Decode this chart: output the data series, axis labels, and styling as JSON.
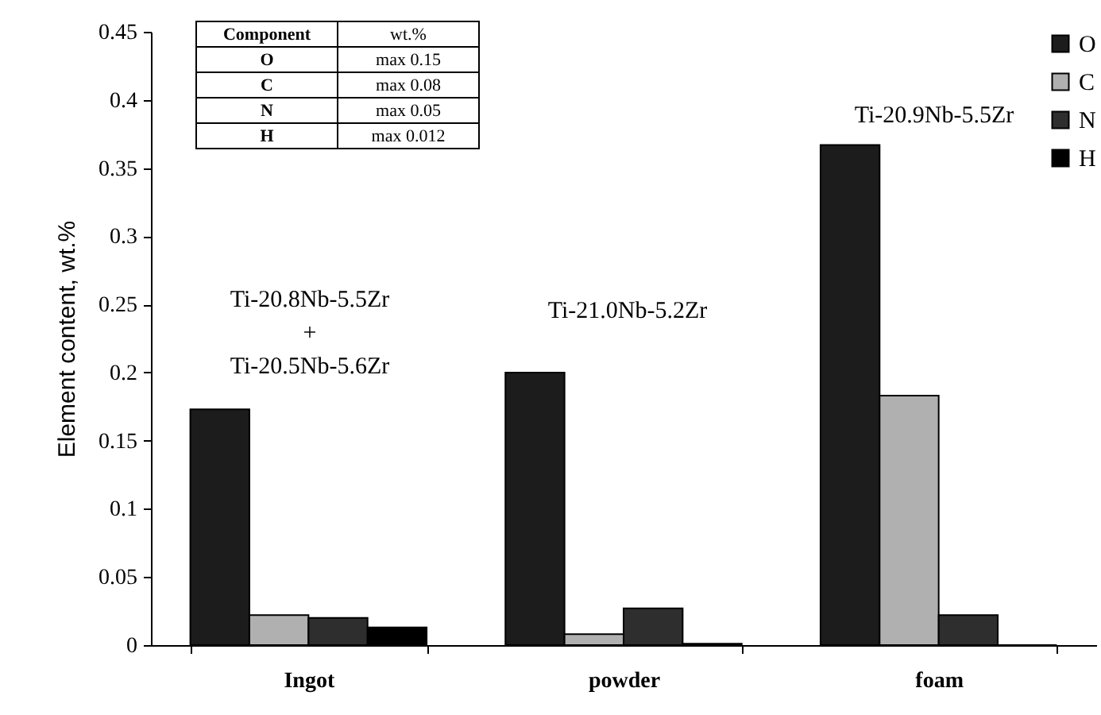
{
  "chart_data": {
    "type": "bar",
    "ylabel": "Element content, wt.%",
    "categories": [
      "Ingot",
      "powder",
      "foam"
    ],
    "series": [
      {
        "name": "O",
        "color": "#1c1c1c",
        "values": [
          0.173,
          0.2,
          0.367
        ]
      },
      {
        "name": "C",
        "color": "#b0b0b0",
        "values": [
          0.022,
          0.008,
          0.183
        ]
      },
      {
        "name": "N",
        "color": "#2e2e2e",
        "values": [
          0.02,
          0.027,
          0.022
        ]
      },
      {
        "name": "H",
        "color": "#000000",
        "values": [
          0.013,
          0.001,
          0
        ]
      }
    ],
    "ylim": [
      0,
      0.45
    ],
    "yticks": [
      0,
      0.05,
      0.1,
      0.15,
      0.2,
      0.25,
      0.3,
      0.35,
      0.4,
      0.45
    ],
    "grid": false,
    "legend": "top right",
    "annotations": [
      "Ti-20.8Nb-5.5Zr\n+\nTi-20.5Nb-5.6Zr",
      "Ti-21.0Nb-5.2Zr",
      "Ti-20.9Nb-5.5Zr",
      "Component",
      "wt.%",
      "O",
      "max 0.15",
      "C",
      "max 0.08",
      "N",
      "max 0.05",
      "H",
      "max 0.012"
    ]
  }
}
